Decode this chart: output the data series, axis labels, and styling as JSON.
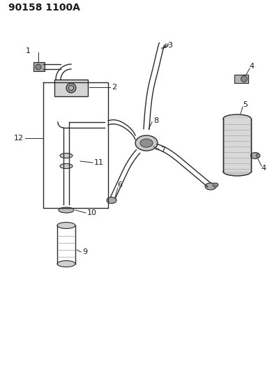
{
  "title": "90158 1100A",
  "bg_color": "#ffffff",
  "line_color": "#2a2a2a",
  "text_color": "#1a1a1a",
  "title_fontsize": 10,
  "label_fontsize": 8,
  "figsize": [
    3.9,
    5.33
  ],
  "dpi": 100
}
